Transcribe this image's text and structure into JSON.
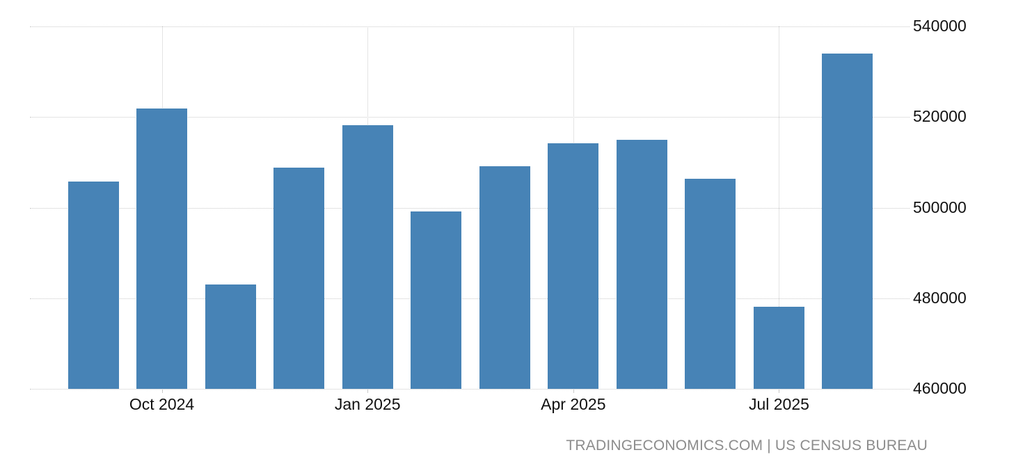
{
  "chart_data": {
    "type": "bar",
    "title": "",
    "xlabel": "",
    "ylabel": "",
    "x": [
      "Sep 2024",
      "Oct 2024",
      "Nov 2024",
      "Dec 2024",
      "Jan 2025",
      "Feb 2025",
      "Mar 2025",
      "Apr 2025",
      "May 2025",
      "Jun 2025",
      "Jul 2025",
      "Aug 2025"
    ],
    "values": [
      505800,
      521900,
      483000,
      508900,
      518200,
      499100,
      509200,
      514200,
      514900,
      506400,
      478100,
      534000
    ],
    "ylim": [
      460000,
      540000
    ],
    "yticks": [
      460000,
      480000,
      500000,
      520000,
      540000
    ],
    "ytick_labels": [
      "460000",
      "480000",
      "500000",
      "520000",
      "540000"
    ],
    "xticks": [
      {
        "index": 1,
        "label": "Oct 2024"
      },
      {
        "index": 4,
        "label": "Jan 2025"
      },
      {
        "index": 7,
        "label": "Apr 2025"
      },
      {
        "index": 10,
        "label": "Jul 2025"
      }
    ],
    "grid": true,
    "legend": false,
    "bar_color": "#4783b6"
  },
  "colors": {
    "background": "#ffffff",
    "gridline": "#c9c9c9",
    "axis_text": "#111111",
    "attribution_text": "#8c8c8c"
  },
  "attribution": "TRADINGECONOMICS.COM | US CENSUS BUREAU"
}
